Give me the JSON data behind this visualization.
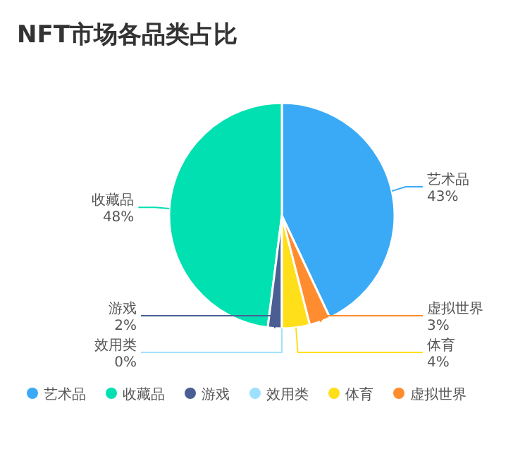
{
  "chart_data": {
    "type": "pie",
    "title": "NFT市场各品类占比",
    "categories": [
      "艺术品",
      "收藏品",
      "游戏",
      "效用类",
      "体育",
      "虚拟世界"
    ],
    "values": [
      43,
      48,
      2,
      0,
      4,
      3
    ],
    "colors": [
      "#3aaaf6",
      "#00e0b0",
      "#4a5e94",
      "#a0e0ff",
      "#ffdf1a",
      "#ff8c2e"
    ],
    "value_labels": [
      "43%",
      "48%",
      "2%",
      "0%",
      "4%",
      "3%"
    ],
    "legend": "bottom"
  }
}
